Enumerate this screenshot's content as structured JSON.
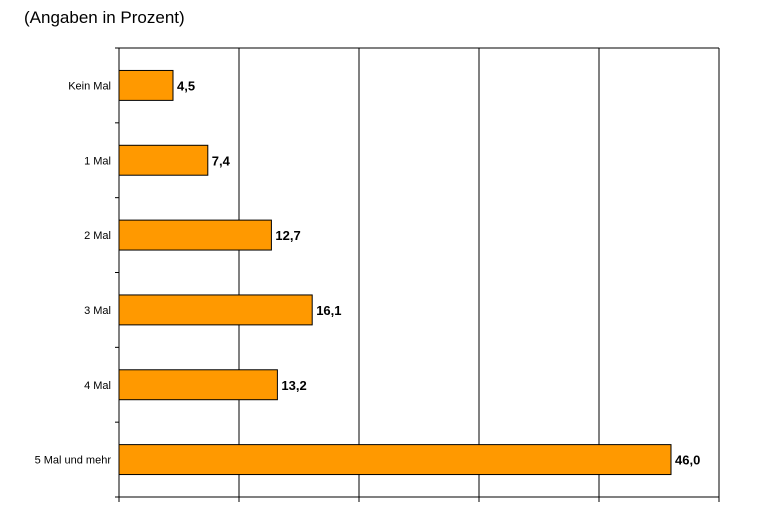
{
  "chart_data": {
    "type": "bar",
    "orientation": "horizontal",
    "title": "(Angaben in Prozent)",
    "categories": [
      "Kein Mal",
      "1 Mal",
      "2 Mal",
      "3 Mal",
      "4 Mal",
      "5 Mal und mehr"
    ],
    "values": [
      4.5,
      7.4,
      12.7,
      16.1,
      13.2,
      46.0
    ],
    "value_labels": [
      "4,5",
      "7,4",
      "12,7",
      "16,1",
      "13,2",
      "46,0"
    ],
    "xlim": [
      0,
      50
    ],
    "grid": "vertical",
    "bar_color": "#ff9900",
    "bar_edge_color": "#000000"
  }
}
